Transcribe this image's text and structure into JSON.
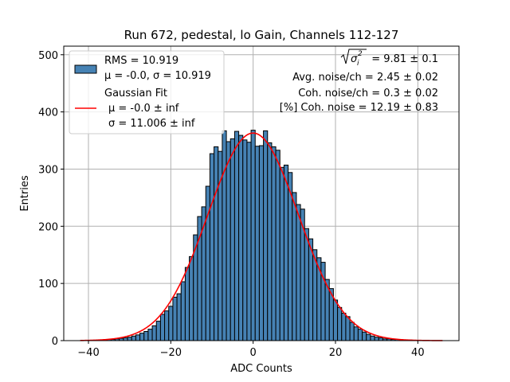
{
  "chart_data": {
    "type": "bar",
    "title": "Run 672, pedestal, lo Gain, Channels 112-127",
    "xlabel": "ADC Counts",
    "ylabel": "Entries",
    "xlim": [
      -46,
      50
    ],
    "ylim": [
      0,
      515
    ],
    "xticks": [
      -40,
      -20,
      0,
      20,
      40
    ],
    "yticks": [
      0,
      100,
      200,
      300,
      400,
      500
    ],
    "grid": true,
    "legend_position": "top-left",
    "bin_width": 1,
    "bins": {
      "x": [
        -42,
        -41,
        -40,
        -39,
        -38,
        -37,
        -36,
        -35,
        -34,
        -33,
        -32,
        -31,
        -30,
        -29,
        -28,
        -27,
        -26,
        -25,
        -24,
        -23,
        -22,
        -21,
        -20,
        -19,
        -18,
        -17,
        -16,
        -15,
        -14,
        -13,
        -12,
        -11,
        -10,
        -9,
        -8,
        -7,
        -6,
        -5,
        -4,
        -3,
        -2,
        -1,
        0,
        1,
        2,
        3,
        4,
        5,
        6,
        7,
        8,
        9,
        10,
        11,
        12,
        13,
        14,
        15,
        16,
        17,
        18,
        19,
        20,
        21,
        22,
        23,
        24,
        25,
        26,
        27,
        28,
        29,
        30,
        31,
        32,
        33,
        34,
        35,
        36,
        37,
        38,
        39,
        40,
        41,
        42,
        43,
        44,
        45
      ],
      "counts": [
        0,
        0,
        0,
        0,
        0,
        1,
        1,
        2,
        2,
        3,
        4,
        5,
        6,
        8,
        10,
        13,
        16,
        20,
        26,
        34,
        46,
        52,
        60,
        76,
        82,
        103,
        128,
        147,
        185,
        217,
        234,
        270,
        327,
        339,
        331,
        367,
        348,
        353,
        366,
        359,
        351,
        347,
        368,
        340,
        341,
        367,
        346,
        339,
        333,
        303,
        307,
        294,
        259,
        238,
        230,
        196,
        178,
        159,
        145,
        137,
        107,
        91,
        71,
        58,
        48,
        42,
        32,
        24,
        20,
        15,
        11,
        8,
        6,
        5,
        3,
        3,
        2,
        2,
        1,
        1,
        1,
        0,
        0,
        0,
        0,
        0,
        0,
        0
      ]
    },
    "series": [
      {
        "name": "RMS = 10.919",
        "name_line2": "μ = -0.0, σ = 10.919",
        "type": "histogram",
        "color": "#4682b4"
      },
      {
        "name": "Gaussian Fit",
        "name_line2": "μ = -0.0 ± inf",
        "name_line3": "σ = 11.006 ± inf",
        "type": "line",
        "color": "#ff0000",
        "mu": 0.0,
        "sigma": 11.006,
        "amplitude": 363,
        "x_range": [
          -42,
          46
        ]
      }
    ],
    "annotations": {
      "sigma_sum": "= 9.81 ± 0.1",
      "avg_noise": "Avg. noise/ch = 2.45 ± 0.02",
      "coh_noise": "Coh. noise/ch = 0.3 ± 0.02",
      "coh_noise_pct": "[%] Coh. noise = 12.19 ± 0.83"
    }
  }
}
